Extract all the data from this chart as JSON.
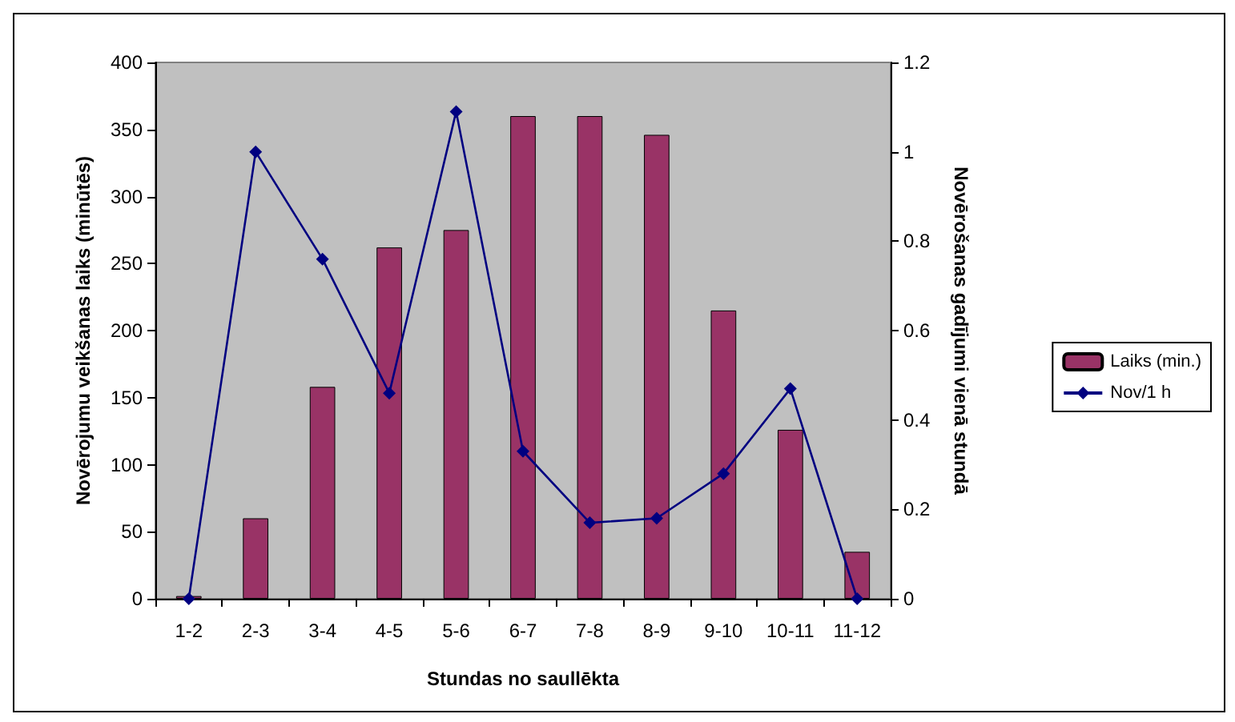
{
  "chart_data": {
    "type": "bar",
    "xlabel": "Stundas no saullēkta",
    "ylabel": "Novērojumu veikšanas laiks (minūtēs)",
    "y2label": "Novērošanas gadījumi vienā stundā",
    "categories": [
      "1-2",
      "2-3",
      "3-4",
      "4-5",
      "5-6",
      "6-7",
      "7-8",
      "8-9",
      "9-10",
      "10-11",
      "11-12"
    ],
    "series": [
      {
        "name": "Laiks (min.)",
        "color": "#993366",
        "values": [
          2,
          60,
          158,
          262,
          275,
          360,
          360,
          346,
          215,
          126,
          35
        ]
      },
      {
        "name": "Nov/1 h",
        "type": "line",
        "axis": "y2",
        "color": "#000080",
        "marker": "diamond",
        "values": [
          0,
          1.0,
          0.76,
          0.46,
          1.09,
          0.33,
          0.17,
          0.18,
          0.28,
          0.47,
          0
        ]
      }
    ],
    "ylim": [
      0,
      400
    ],
    "yticks": [
      0,
      50,
      100,
      150,
      200,
      250,
      300,
      350,
      400
    ],
    "y2lim": [
      0,
      1.2
    ],
    "y2ticks": [
      0,
      0.2,
      0.4,
      0.6,
      0.8,
      1,
      1.2
    ],
    "grid": false,
    "legend": "right"
  }
}
